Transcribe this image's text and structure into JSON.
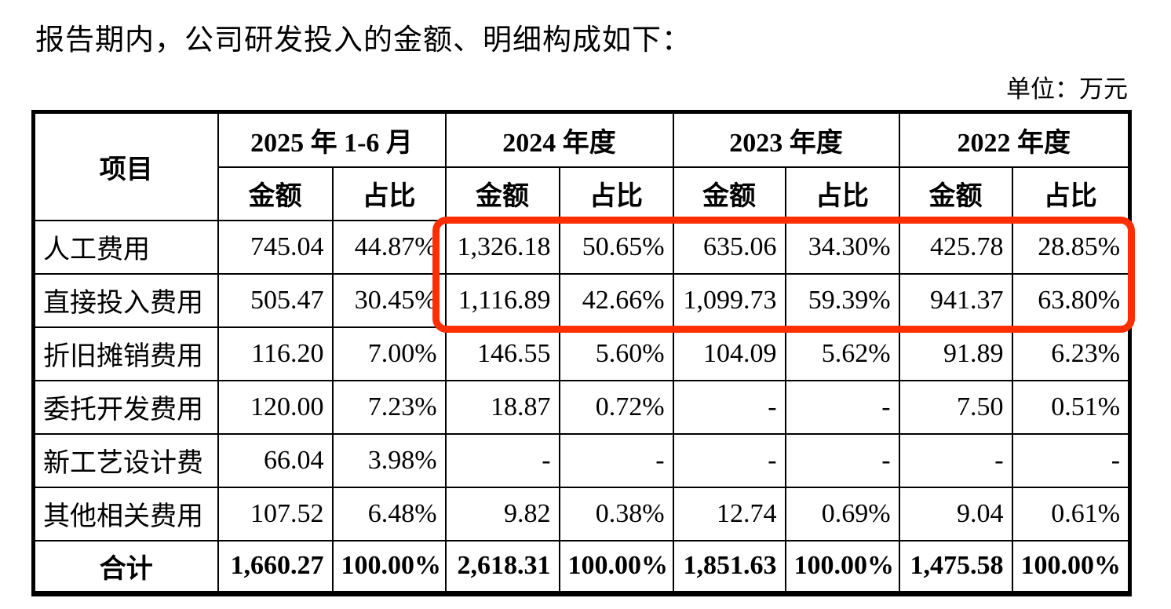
{
  "page": {
    "intro_text": "报告期内，公司研发投入的金额、明细构成如下：",
    "unit_label": "单位：万元"
  },
  "table": {
    "item_header": "项目",
    "periods": [
      {
        "label": "2025 年 1-6 月"
      },
      {
        "label": "2024 年度"
      },
      {
        "label": "2023 年度"
      },
      {
        "label": "2022 年度"
      }
    ],
    "sub_headers": {
      "amount": "金额",
      "ratio": "占比"
    },
    "rows": [
      {
        "item": "人工费用",
        "values": [
          "745.04",
          "44.87%",
          "1,326.18",
          "50.65%",
          "635.06",
          "34.30%",
          "425.78",
          "28.85%"
        ]
      },
      {
        "item": "直接投入费用",
        "values": [
          "505.47",
          "30.45%",
          "1,116.89",
          "42.66%",
          "1,099.73",
          "59.39%",
          "941.37",
          "63.80%"
        ]
      },
      {
        "item": "折旧摊销费用",
        "values": [
          "116.20",
          "7.00%",
          "146.55",
          "5.60%",
          "104.09",
          "5.62%",
          "91.89",
          "6.23%"
        ]
      },
      {
        "item": "委托开发费用",
        "values": [
          "120.00",
          "7.23%",
          "18.87",
          "0.72%",
          "-",
          "-",
          "7.50",
          "0.51%"
        ]
      },
      {
        "item": "新工艺设计费",
        "values": [
          "66.04",
          "3.98%",
          "-",
          "-",
          "-",
          "-",
          "-",
          "-"
        ]
      },
      {
        "item": "其他相关费用",
        "values": [
          "107.52",
          "6.48%",
          "9.82",
          "0.38%",
          "12.74",
          "0.69%",
          "9.04",
          "0.61%"
        ]
      }
    ],
    "total_row": {
      "item": "合计",
      "values": [
        "1,660.27",
        "100.00%",
        "2,618.31",
        "100.00%",
        "1,851.63",
        "100.00%",
        "1,475.58",
        "100.00%"
      ]
    }
  },
  "annotation": {
    "highlight_color": "#fd2f01"
  }
}
